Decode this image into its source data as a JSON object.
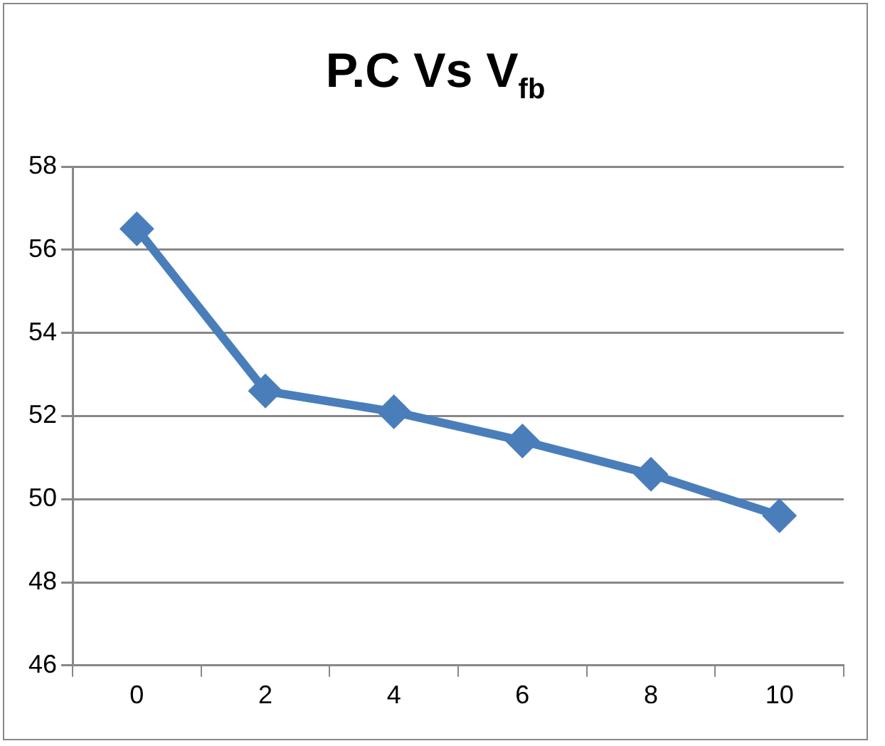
{
  "chart_data": {
    "type": "line",
    "title": "P.C Vs V$_{fb}$",
    "categories": [
      "0",
      "2",
      "4",
      "6",
      "8",
      "10"
    ],
    "series": [
      {
        "color": "#4a7ebb",
        "values": [
          56.5,
          52.6,
          52.1,
          51.4,
          50.6,
          49.6
        ]
      }
    ],
    "ylim": [
      46,
      58
    ],
    "yticks": [
      46,
      48,
      50,
      52,
      54,
      56,
      58
    ],
    "grid": "y",
    "legend": false,
    "marker": "diamond",
    "line_style": "solid"
  }
}
